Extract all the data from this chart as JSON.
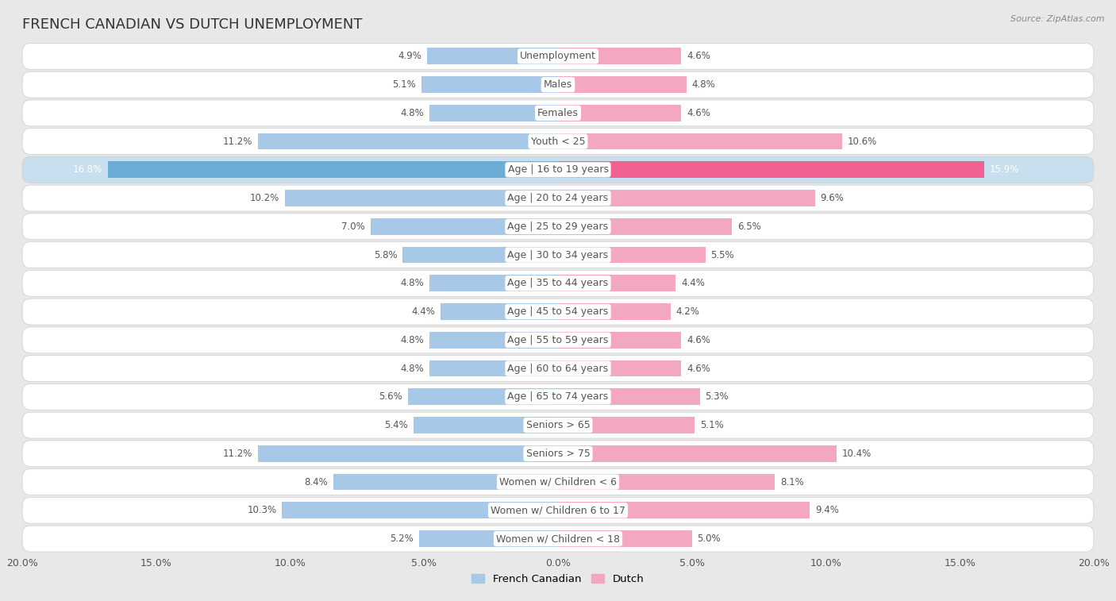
{
  "title": "FRENCH CANADIAN VS DUTCH UNEMPLOYMENT",
  "source": "Source: ZipAtlas.com",
  "categories": [
    "Unemployment",
    "Males",
    "Females",
    "Youth < 25",
    "Age | 16 to 19 years",
    "Age | 20 to 24 years",
    "Age | 25 to 29 years",
    "Age | 30 to 34 years",
    "Age | 35 to 44 years",
    "Age | 45 to 54 years",
    "Age | 55 to 59 years",
    "Age | 60 to 64 years",
    "Age | 65 to 74 years",
    "Seniors > 65",
    "Seniors > 75",
    "Women w/ Children < 6",
    "Women w/ Children 6 to 17",
    "Women w/ Children < 18"
  ],
  "french_canadian": [
    4.9,
    5.1,
    4.8,
    11.2,
    16.8,
    10.2,
    7.0,
    5.8,
    4.8,
    4.4,
    4.8,
    4.8,
    5.6,
    5.4,
    11.2,
    8.4,
    10.3,
    5.2
  ],
  "dutch": [
    4.6,
    4.8,
    4.6,
    10.6,
    15.9,
    9.6,
    6.5,
    5.5,
    4.4,
    4.2,
    4.6,
    4.6,
    5.3,
    5.1,
    10.4,
    8.1,
    9.4,
    5.0
  ],
  "french_color_normal": "#a8c8e8",
  "dutch_color_normal": "#f4a8c0",
  "french_color_highlight": "#6aaed6",
  "dutch_color_highlight": "#f06090",
  "text_color": "#555555",
  "highlight_text_color": "#ffffff",
  "bg_color": "#e8e8e8",
  "row_bg": "#ffffff",
  "highlight_row_bg": "#c8dff0",
  "highlight_idx": 4,
  "max_val": 20.0,
  "title_fontsize": 13,
  "label_fontsize": 9,
  "value_fontsize": 8.5,
  "axis_fontsize": 9
}
